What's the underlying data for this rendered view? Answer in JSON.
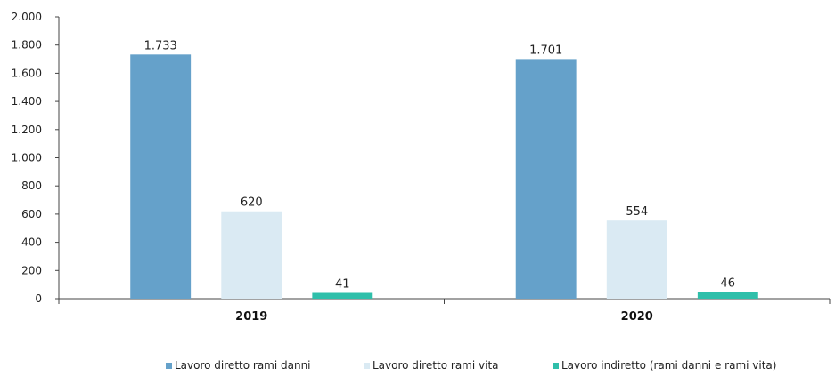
{
  "chart_data": {
    "type": "bar",
    "categories": [
      "2019",
      "2020"
    ],
    "series": [
      {
        "name": "Lavoro diretto rami danni",
        "values": [
          1733,
          1701
        ],
        "labels": [
          "1.733",
          "1.701"
        ],
        "color": "#65A1CA"
      },
      {
        "name": "Lavoro diretto rami vita",
        "values": [
          620,
          554
        ],
        "labels": [
          "620",
          "554"
        ],
        "color": "#DAEAF3"
      },
      {
        "name": "Lavoro indiretto (rami danni e rami vita)",
        "values": [
          41,
          46
        ],
        "labels": [
          "41",
          "46"
        ],
        "color": "#2FBFAA"
      }
    ],
    "ylim": [
      0,
      2000
    ],
    "yticks": [
      0,
      200,
      400,
      600,
      800,
      1000,
      1200,
      1400,
      1600,
      1800,
      2000
    ],
    "ytick_labels": [
      "0",
      "200",
      "400",
      "600",
      "800",
      "1.000",
      "1.200",
      "1.400",
      "1.600",
      "1.800",
      "2.000"
    ],
    "title": "",
    "xlabel": "",
    "ylabel": "",
    "grid": false,
    "legend_position": "bottom"
  }
}
